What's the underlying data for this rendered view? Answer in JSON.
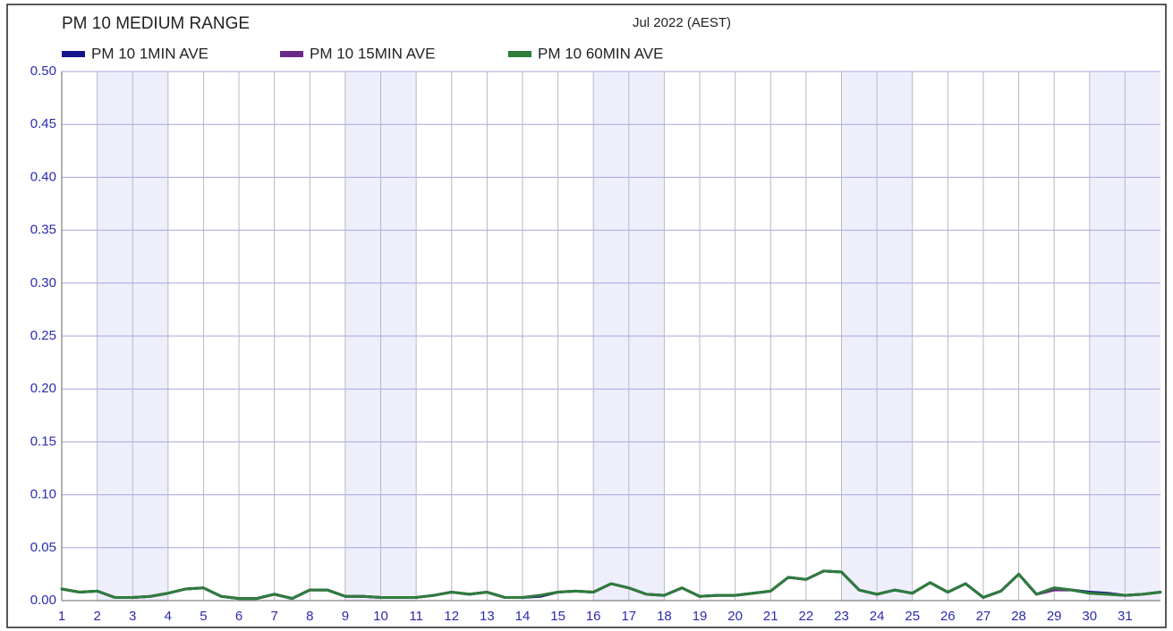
{
  "chart_data": {
    "type": "line",
    "title": "PM 10 MEDIUM RANGE",
    "subtitle": "Jul 2022 (AEST)",
    "x": [
      1,
      1.5,
      2,
      2.5,
      3,
      3.5,
      4,
      4.5,
      5,
      5.5,
      6,
      6.5,
      7,
      7.5,
      8,
      8.5,
      9,
      9.5,
      10,
      10.5,
      11,
      11.5,
      12,
      12.5,
      13,
      13.5,
      14,
      14.5,
      15,
      15.5,
      16,
      16.5,
      17,
      17.5,
      18,
      18.5,
      19,
      19.5,
      20,
      20.5,
      21,
      21.5,
      22,
      22.5,
      23,
      23.5,
      24,
      24.5,
      25,
      25.5,
      26,
      26.5,
      27,
      27.5,
      28,
      28.5,
      29,
      29.5,
      30,
      30.5,
      31,
      31.5,
      32
    ],
    "series": [
      {
        "name": "PM 10 1MIN AVE",
        "color": "#14148c",
        "values": [
          0.011,
          0.008,
          0.009,
          0.003,
          0.003,
          0.004,
          0.007,
          0.011,
          0.012,
          0.004,
          0.002,
          0.002,
          0.006,
          0.002,
          0.01,
          0.01,
          0.004,
          0.004,
          0.003,
          0.003,
          0.003,
          0.005,
          0.008,
          0.006,
          0.008,
          0.003,
          0.003,
          0.004,
          0.008,
          0.009,
          0.008,
          0.016,
          0.012,
          0.006,
          0.005,
          0.012,
          0.004,
          0.005,
          0.005,
          0.007,
          0.009,
          0.022,
          0.02,
          0.028,
          0.027,
          0.01,
          0.006,
          0.01,
          0.007,
          0.017,
          0.008,
          0.016,
          0.003,
          0.009,
          0.025,
          0.006,
          0.012,
          0.01,
          0.008,
          0.007,
          0.005,
          0.006,
          0.008
        ]
      },
      {
        "name": "PM 10 15MIN AVE",
        "color": "#6a2a8a",
        "values": [
          0.011,
          0.008,
          0.009,
          0.003,
          0.003,
          0.004,
          0.007,
          0.011,
          0.012,
          0.004,
          0.002,
          0.002,
          0.006,
          0.002,
          0.01,
          0.01,
          0.004,
          0.004,
          0.003,
          0.003,
          0.003,
          0.005,
          0.008,
          0.006,
          0.008,
          0.003,
          0.003,
          0.005,
          0.008,
          0.009,
          0.008,
          0.016,
          0.012,
          0.006,
          0.005,
          0.012,
          0.004,
          0.005,
          0.005,
          0.007,
          0.009,
          0.022,
          0.02,
          0.028,
          0.027,
          0.01,
          0.006,
          0.01,
          0.007,
          0.017,
          0.008,
          0.016,
          0.003,
          0.009,
          0.025,
          0.006,
          0.01,
          0.01,
          0.007,
          0.006,
          0.005,
          0.006,
          0.008
        ]
      },
      {
        "name": "PM 10 60MIN AVE",
        "color": "#2e7d3a",
        "values": [
          0.011,
          0.008,
          0.009,
          0.003,
          0.003,
          0.004,
          0.007,
          0.011,
          0.012,
          0.004,
          0.002,
          0.002,
          0.006,
          0.002,
          0.01,
          0.01,
          0.004,
          0.004,
          0.003,
          0.003,
          0.003,
          0.005,
          0.008,
          0.006,
          0.008,
          0.003,
          0.003,
          0.005,
          0.008,
          0.009,
          0.008,
          0.016,
          0.012,
          0.006,
          0.005,
          0.012,
          0.004,
          0.005,
          0.005,
          0.007,
          0.009,
          0.022,
          0.02,
          0.028,
          0.027,
          0.01,
          0.006,
          0.01,
          0.007,
          0.017,
          0.008,
          0.016,
          0.003,
          0.009,
          0.025,
          0.006,
          0.012,
          0.01,
          0.007,
          0.006,
          0.005,
          0.006,
          0.008
        ]
      }
    ],
    "xlim": [
      1,
      32
    ],
    "xticks": [
      1,
      2,
      3,
      4,
      5,
      6,
      7,
      8,
      9,
      10,
      11,
      12,
      13,
      14,
      15,
      16,
      17,
      18,
      19,
      20,
      21,
      22,
      23,
      24,
      25,
      26,
      27,
      28,
      29,
      30,
      31
    ],
    "ylim": [
      0,
      0.5
    ],
    "yticks": [
      {
        "value": 0,
        "label": "0.00"
      },
      {
        "value": 0.05,
        "label": "0.05"
      },
      {
        "value": 0.1,
        "label": "0.10"
      },
      {
        "value": 0.15,
        "label": "0.15"
      },
      {
        "value": 0.2,
        "label": "0.20"
      },
      {
        "value": 0.25,
        "label": "0.25"
      },
      {
        "value": 0.3,
        "label": "0.30"
      },
      {
        "value": 0.35,
        "label": "0.35"
      },
      {
        "value": 0.4,
        "label": "0.40"
      },
      {
        "value": 0.45,
        "label": "0.45"
      },
      {
        "value": 0.5,
        "label": "0.50"
      }
    ],
    "shaded_days": [
      [
        2,
        4
      ],
      [
        9,
        11
      ],
      [
        16,
        18
      ],
      [
        23,
        25
      ],
      [
        30,
        32
      ]
    ],
    "grid": true
  }
}
